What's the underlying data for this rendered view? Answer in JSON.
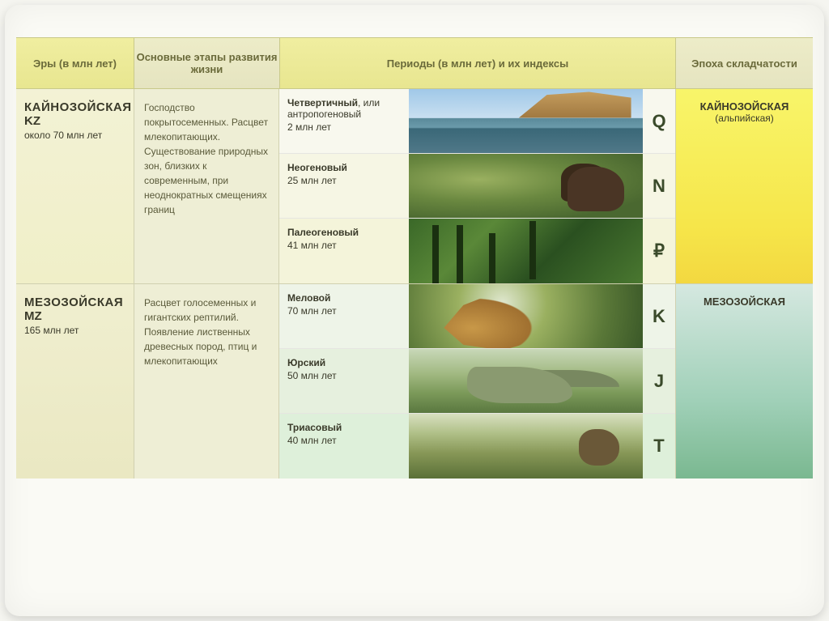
{
  "headers": {
    "era": "Эры (в млн лет)",
    "development": "Основные этапы развития жизни",
    "periods": "Периоды (в млн лет) и их индексы",
    "folding": "Эпоха складчатости"
  },
  "eras": [
    {
      "key": "kz",
      "name": "КАЙНОЗОЙСКАЯ",
      "code": "KZ",
      "duration": "около 70 млн лет",
      "development": "Господство покрытосеменных. Расцвет млекопитающих. Существование природных зон, близких к современным, при неоднократных смещениях границ",
      "folding_name": "КАЙНОЗОЙСКАЯ",
      "folding_sub": "(альпийская)",
      "folding_bg": "#f6e64a",
      "periods": [
        {
          "name": "Четвертичный",
          "extra": ", или антропогеновый",
          "duration": "2 млн лет",
          "index": "Q",
          "img_class": "img-q"
        },
        {
          "name": "Неогеновый",
          "extra": "",
          "duration": "25 млн лет",
          "index": "N",
          "img_class": "img-n"
        },
        {
          "name": "Палеогеновый",
          "extra": "",
          "duration": "41 млн лет",
          "index": "₽",
          "img_class": "img-p"
        }
      ]
    },
    {
      "key": "mz",
      "name": "МЕЗОЗОЙСКАЯ",
      "code": "MZ",
      "duration": "165 млн лет",
      "development": "Расцвет голосеменных и гигантских рептилий. Появление лиственных древесных пород, птиц и млекопитающих",
      "folding_name": "МЕЗОЗОЙСКАЯ",
      "folding_sub": "",
      "folding_bg": "#a0d0b8",
      "periods": [
        {
          "name": "Меловой",
          "extra": "",
          "duration": "70 млн лет",
          "index": "K",
          "img_class": "img-k"
        },
        {
          "name": "Юрский",
          "extra": "",
          "duration": "50 млн лет",
          "index": "J",
          "img_class": "img-j"
        },
        {
          "name": "Триасовый",
          "extra": "",
          "duration": "40 млн лет",
          "index": "T",
          "img_class": "img-t"
        }
      ]
    }
  ],
  "style": {
    "header_bg_primary": "#e8e690",
    "header_bg_secondary": "#e5e4c0",
    "header_text_color": "#6a6a3a",
    "body_text_color": "#3a3a2a",
    "dev_bg": "#eeeed5",
    "border_color": "#c9c98a",
    "container_bg": "#fafaf5",
    "era_name_fontsize": 15,
    "header_fontsize": 13,
    "body_fontsize": 12,
    "index_fontsize": 22,
    "period_row_height": 80
  }
}
